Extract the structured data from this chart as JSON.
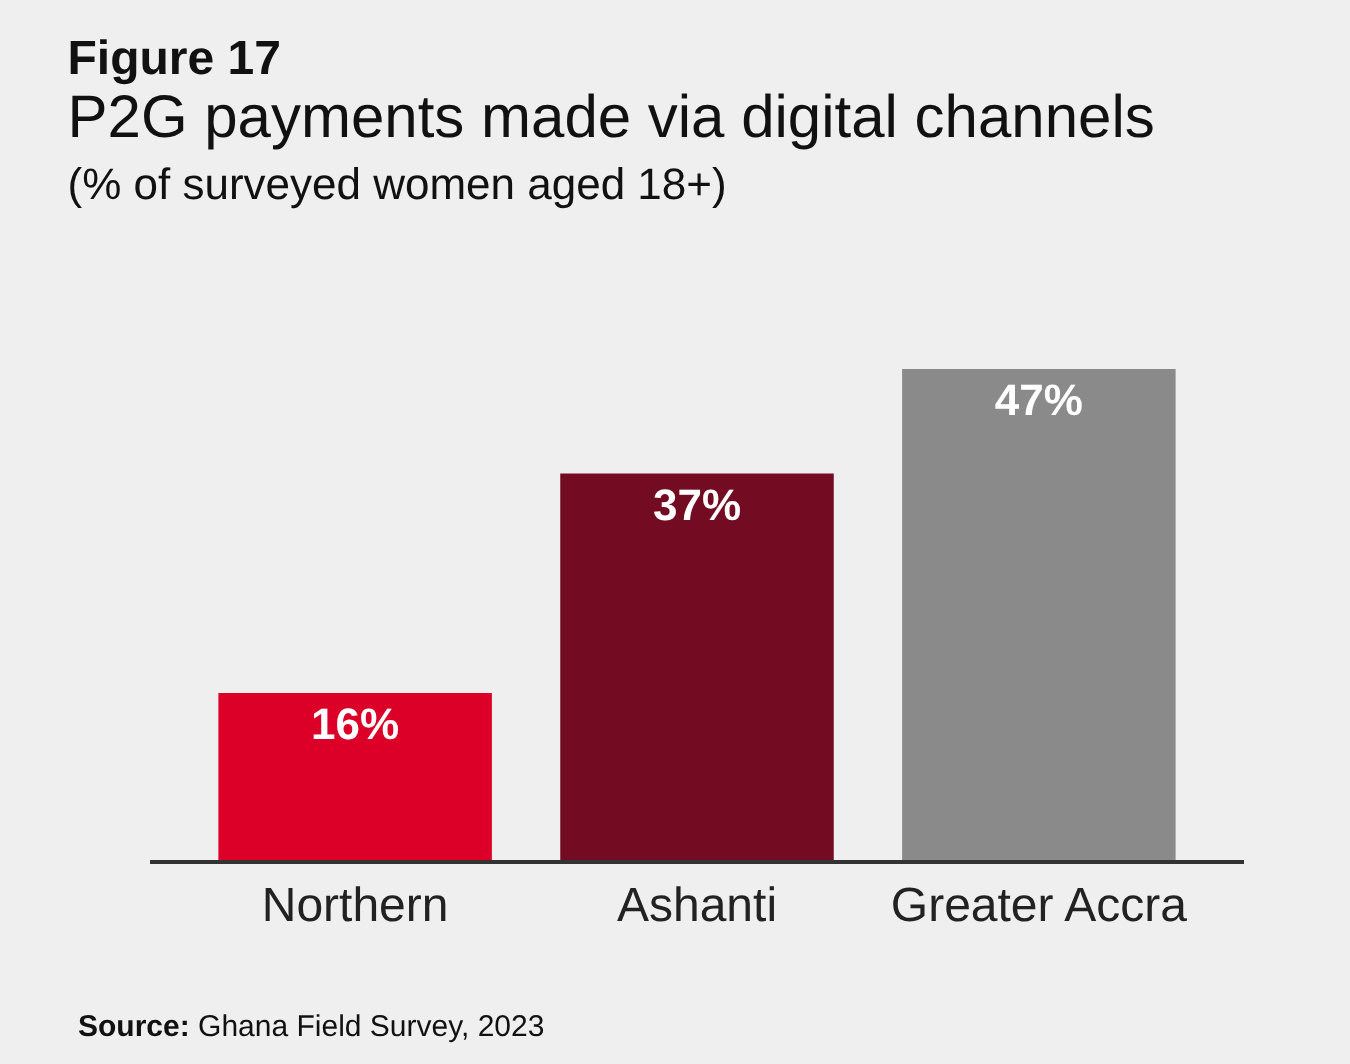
{
  "chart_data": {
    "type": "bar",
    "title": "Figure 17",
    "subtitle": "P2G payments made via digital channels\n(% of surveyed women aged 18+)",
    "categories": [
      "Northern",
      "Ashanti",
      "Greater Accra"
    ],
    "values": [
      16,
      37,
      47
    ],
    "colors": [
      "#dc0028",
      "#730c22",
      "#8a8a8a"
    ],
    "data_labels": true,
    "value_labels": [
      "16%",
      "37%",
      "47%"
    ],
    "grid": false,
    "annotations": [
      "Source: Ghana Field Survey, 2023"
    ]
  }
}
